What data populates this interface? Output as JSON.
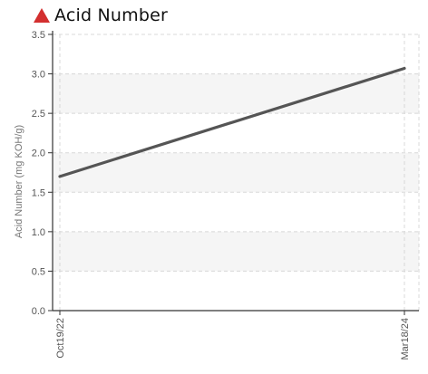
{
  "header": {
    "title": "Acid Number",
    "status_icon": "warning-triangle-icon",
    "status_color": "#d32f2f"
  },
  "chart_data": {
    "type": "line",
    "title": "Acid Number",
    "xlabel": "",
    "ylabel": "Acid Number (mg KOH/g)",
    "x_tick_labels": [
      "Oct19/22",
      "Mar18/24"
    ],
    "y_tick_labels": [
      "0.0",
      "0.5",
      "1.0",
      "1.5",
      "2.0",
      "2.5",
      "3.0",
      "3.5"
    ],
    "ylim": [
      0,
      3.5
    ],
    "grid": true,
    "series": [
      {
        "x": [
          "Oct19/22",
          "Mar18/24"
        ],
        "values": [
          1.7,
          3.07
        ],
        "color": "#555555"
      }
    ],
    "band_color": "#f5f5f5",
    "grid_color": "#d8d8d8"
  }
}
